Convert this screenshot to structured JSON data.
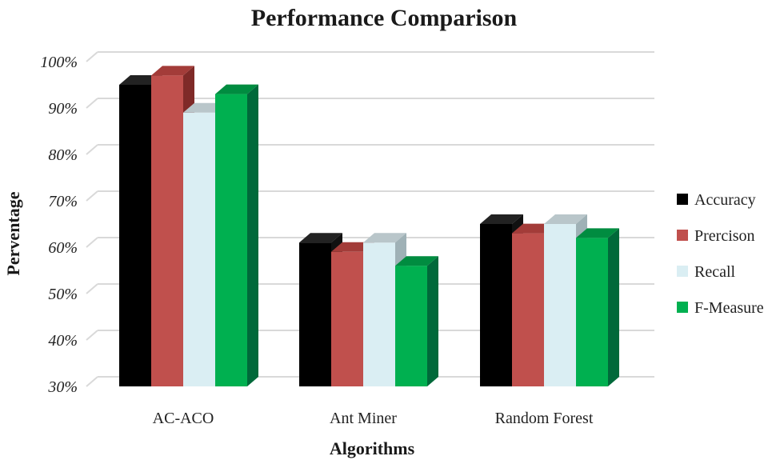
{
  "chart_data": {
    "type": "bar",
    "title": "Performance Comparison",
    "xlabel": "Algorithms",
    "ylabel": "Perventage",
    "categories": [
      "AC-ACO",
      "Ant Miner",
      "Random Forest"
    ],
    "ylim": [
      30,
      100
    ],
    "yticks": [
      "30%",
      "40%",
      "50%",
      "60%",
      "70%",
      "80%",
      "90%",
      "100%"
    ],
    "ytick_values": [
      30,
      40,
      50,
      60,
      70,
      80,
      90,
      100
    ],
    "series": [
      {
        "name": "Accuracy",
        "values": [
          95,
          61,
          65
        ],
        "color": "#000000",
        "side_color": "#111111",
        "top_color": "#222222"
      },
      {
        "name": "Prercison",
        "values": [
          97,
          59,
          63
        ],
        "color": "#c0504d",
        "side_color": "#7f2a28",
        "top_color": "#a33c39"
      },
      {
        "name": "Recall",
        "values": [
          89,
          61,
          65
        ],
        "color": "#daeef3",
        "side_color": "#9fb1b6",
        "top_color": "#b9c6ca"
      },
      {
        "name": "F-Measure",
        "values": [
          93,
          56,
          62
        ],
        "color": "#00b050",
        "side_color": "#00693a",
        "top_color": "#008c40"
      }
    ],
    "grid": true,
    "legend_position": "right"
  }
}
